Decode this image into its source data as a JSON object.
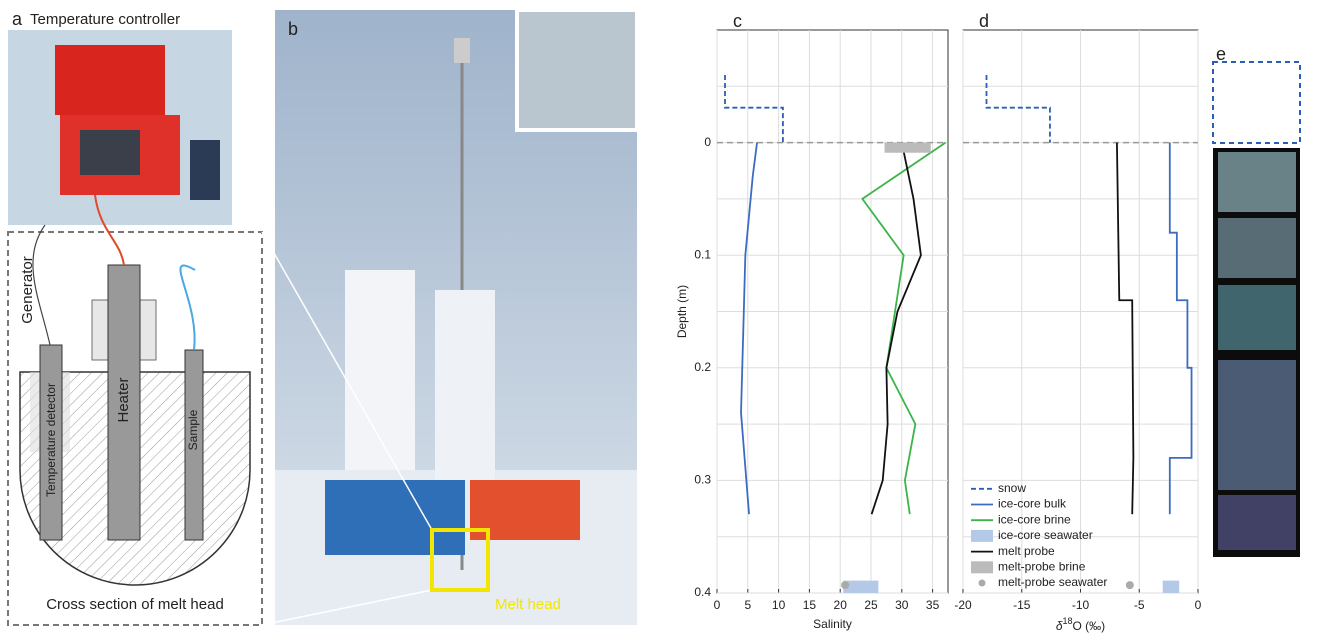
{
  "figure": {
    "a": {
      "label": "a",
      "title": "Temperature controller",
      "generator": "Generator",
      "detector": "Temperature detector",
      "heater": "Heater",
      "sample": "Sample",
      "caption": "Cross section of melt head"
    },
    "b": {
      "label": "b",
      "annotation": "Melt head"
    },
    "e": {
      "label": "e"
    }
  },
  "chart_data": [
    {
      "type": "profile",
      "title": "c",
      "xlabel": "Salinity",
      "ylabel": "Depth (m)",
      "xlim": [
        0,
        37.5
      ],
      "ylim": [
        -0.1,
        0.4
      ],
      "y_reversed": true,
      "xticks": [
        0,
        5,
        10,
        15,
        20,
        25,
        30,
        35
      ],
      "yticks": [
        0,
        0.1,
        0.2,
        0.3,
        0.4
      ],
      "yminor": [
        -0.05,
        0.05,
        0.15,
        0.25,
        0.35
      ],
      "show_ytick_labels": true,
      "grid": true,
      "interface_depth": 0,
      "series": [
        {
          "kind": "line",
          "style": "dashed",
          "color": "#2b5fb4",
          "x": [
            1.3,
            1.3,
            10.7,
            10.7
          ],
          "y": [
            -0.06,
            -0.031,
            -0.031,
            0
          ]
        },
        {
          "kind": "line",
          "style": "solid",
          "color": "#3c6cc0",
          "x": [
            6.5,
            5.8,
            4.6,
            3.9,
            5.2
          ],
          "y": [
            0,
            0.03,
            0.1,
            0.24,
            0.33
          ]
        },
        {
          "kind": "line",
          "style": "solid",
          "color": "#3cb44b",
          "x": [
            37.1,
            23.6,
            30.3,
            27.5,
            32.2,
            30.5,
            31.3
          ],
          "y": [
            0,
            0.05,
            0.1,
            0.2,
            0.25,
            0.3,
            0.33
          ]
        },
        {
          "kind": "line",
          "style": "solid",
          "color": "#111111",
          "x": [
            30,
            31.9,
            33.1,
            29.3,
            27.5,
            27.7,
            26.9,
            25.1
          ],
          "y": [
            0,
            0.05,
            0.1,
            0.15,
            0.2,
            0.25,
            0.3,
            0.33
          ]
        },
        {
          "kind": "box",
          "color": "#bbbbbb",
          "x": [
            27.2,
            34.7
          ],
          "y": [
            0,
            0.009
          ]
        },
        {
          "kind": "box",
          "color": "#b4c8e8",
          "x": [
            20.5,
            26.2
          ],
          "y": [
            0.389,
            0.4
          ]
        },
        {
          "kind": "dot",
          "color": "#aaaaaa",
          "x": [
            20.8
          ],
          "y": [
            0.393
          ]
        }
      ]
    },
    {
      "type": "profile",
      "title": "d",
      "xlabel": {
        "main": "δ",
        "sup": "18",
        "tail": "O (‰)"
      },
      "xlim": [
        -20,
        0
      ],
      "ylim": [
        -0.1,
        0.4
      ],
      "y_reversed": true,
      "xticks": [
        -20,
        -15,
        -10,
        -5,
        0
      ],
      "yticks": [
        0,
        0.1,
        0.2,
        0.3,
        0.4
      ],
      "yminor": [
        -0.05,
        0.05,
        0.15,
        0.25,
        0.35
      ],
      "show_ytick_labels": false,
      "grid": true,
      "interface_depth": 0,
      "series": [
        {
          "kind": "line",
          "style": "dashed",
          "color": "#2b5fb4",
          "x": [
            -18,
            -18,
            -12.6,
            -12.6
          ],
          "y": [
            -0.06,
            -0.031,
            -0.031,
            0
          ]
        },
        {
          "kind": "line",
          "style": "solid",
          "color": "#3c6cc0",
          "x": [
            -2.4,
            -2.4,
            -1.8,
            -1.8,
            -0.9,
            -0.9,
            -0.55,
            -0.55,
            -2.4,
            -2.4
          ],
          "y": [
            0,
            0.08,
            0.08,
            0.14,
            0.14,
            0.2,
            0.2,
            0.28,
            0.28,
            0.33
          ]
        },
        {
          "kind": "line",
          "style": "solid",
          "color": "#111111",
          "x": [
            -6.9,
            -6.8,
            -6.7,
            -5.6,
            -5.5,
            -5.6
          ],
          "y": [
            0,
            0.07,
            0.14,
            0.14,
            0.28,
            0.33
          ]
        },
        {
          "kind": "box",
          "color": "#b4c8e8",
          "x": [
            -3,
            -1.6
          ],
          "y": [
            0.389,
            0.4
          ]
        },
        {
          "kind": "dot",
          "color": "#aaaaaa",
          "x": [
            -5.8
          ],
          "y": [
            0.393
          ]
        }
      ],
      "legend": {
        "position": "lower left",
        "entries": [
          {
            "name": "snow",
            "kind": "line",
            "style": "dashed",
            "color": "#2b5fb4"
          },
          {
            "name": "ice-core bulk",
            "kind": "line",
            "style": "solid",
            "color": "#3c6cc0"
          },
          {
            "name": "ice-core brine",
            "kind": "line",
            "style": "solid",
            "color": "#3cb44b"
          },
          {
            "name": "ice-core seawater",
            "kind": "box",
            "color": "#b4c8e8"
          },
          {
            "name": "melt probe",
            "kind": "line",
            "style": "solid",
            "color": "#111111"
          },
          {
            "name": "melt-probe brine",
            "kind": "box",
            "color": "#bbbbbb"
          },
          {
            "name": "melt-probe seawater",
            "kind": "dot",
            "color": "#aaaaaa"
          }
        ]
      }
    }
  ]
}
